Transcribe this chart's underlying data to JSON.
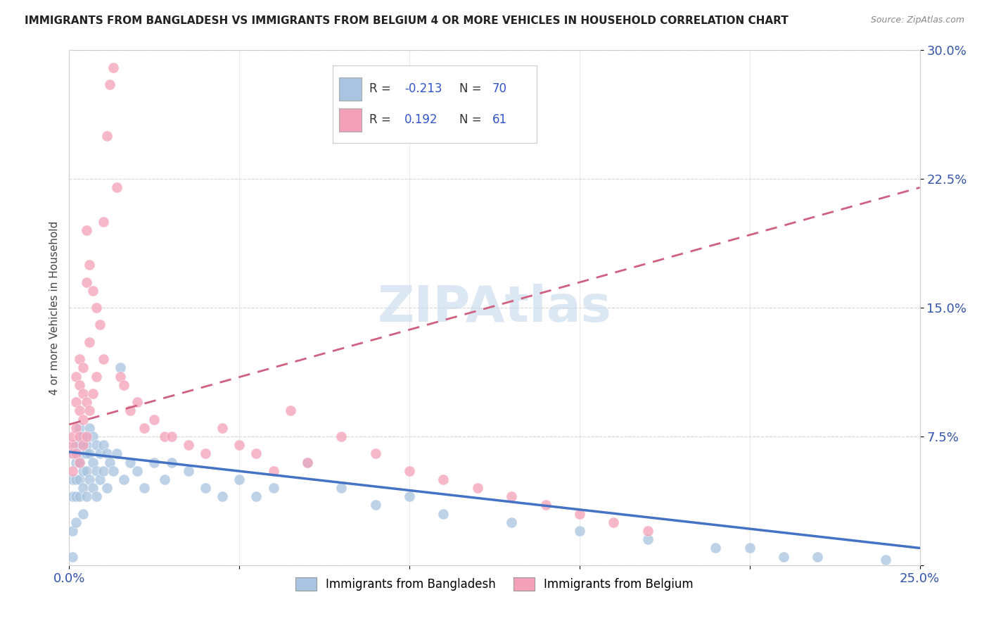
{
  "title": "IMMIGRANTS FROM BANGLADESH VS IMMIGRANTS FROM BELGIUM 4 OR MORE VEHICLES IN HOUSEHOLD CORRELATION CHART",
  "source": "Source: ZipAtlas.com",
  "ylabel": "4 or more Vehicles in Household",
  "xlim": [
    0.0,
    0.25
  ],
  "ylim": [
    0.0,
    0.3
  ],
  "color_bangladesh": "#a8c4e0",
  "color_belgium": "#f4a0b8",
  "trendline_bangladesh": "#4472c4",
  "trendline_belgium": "#d06080",
  "watermark": "ZIPAtlas",
  "legend1_R": "-0.213",
  "legend1_N": "70",
  "legend2_R": "0.192",
  "legend2_N": "61",
  "bd_x": [
    0.001,
    0.001,
    0.001,
    0.001,
    0.001,
    0.002,
    0.002,
    0.002,
    0.002,
    0.002,
    0.002,
    0.003,
    0.003,
    0.003,
    0.003,
    0.003,
    0.004,
    0.004,
    0.004,
    0.004,
    0.004,
    0.005,
    0.005,
    0.005,
    0.005,
    0.006,
    0.006,
    0.006,
    0.007,
    0.007,
    0.007,
    0.008,
    0.008,
    0.008,
    0.009,
    0.009,
    0.01,
    0.01,
    0.011,
    0.011,
    0.012,
    0.013,
    0.014,
    0.015,
    0.016,
    0.018,
    0.02,
    0.022,
    0.025,
    0.028,
    0.03,
    0.035,
    0.04,
    0.045,
    0.05,
    0.055,
    0.06,
    0.07,
    0.08,
    0.09,
    0.1,
    0.11,
    0.13,
    0.15,
    0.17,
    0.19,
    0.2,
    0.21,
    0.22,
    0.24
  ],
  "bd_y": [
    0.065,
    0.05,
    0.04,
    0.02,
    0.005,
    0.07,
    0.065,
    0.06,
    0.05,
    0.04,
    0.025,
    0.08,
    0.07,
    0.06,
    0.05,
    0.04,
    0.075,
    0.065,
    0.055,
    0.045,
    0.03,
    0.07,
    0.065,
    0.055,
    0.04,
    0.08,
    0.065,
    0.05,
    0.075,
    0.06,
    0.045,
    0.07,
    0.055,
    0.04,
    0.065,
    0.05,
    0.07,
    0.055,
    0.065,
    0.045,
    0.06,
    0.055,
    0.065,
    0.115,
    0.05,
    0.06,
    0.055,
    0.045,
    0.06,
    0.05,
    0.06,
    0.055,
    0.045,
    0.04,
    0.05,
    0.04,
    0.045,
    0.06,
    0.045,
    0.035,
    0.04,
    0.03,
    0.025,
    0.02,
    0.015,
    0.01,
    0.01,
    0.005,
    0.005,
    0.003
  ],
  "be_x": [
    0.001,
    0.001,
    0.001,
    0.001,
    0.002,
    0.002,
    0.002,
    0.002,
    0.003,
    0.003,
    0.003,
    0.003,
    0.003,
    0.004,
    0.004,
    0.004,
    0.004,
    0.005,
    0.005,
    0.005,
    0.005,
    0.006,
    0.006,
    0.006,
    0.007,
    0.007,
    0.008,
    0.008,
    0.009,
    0.01,
    0.01,
    0.011,
    0.012,
    0.013,
    0.014,
    0.015,
    0.016,
    0.018,
    0.02,
    0.022,
    0.025,
    0.028,
    0.03,
    0.035,
    0.04,
    0.045,
    0.05,
    0.055,
    0.06,
    0.065,
    0.07,
    0.08,
    0.09,
    0.1,
    0.11,
    0.12,
    0.13,
    0.14,
    0.15,
    0.16,
    0.17
  ],
  "be_y": [
    0.07,
    0.075,
    0.065,
    0.055,
    0.11,
    0.095,
    0.08,
    0.065,
    0.12,
    0.105,
    0.09,
    0.075,
    0.06,
    0.115,
    0.1,
    0.085,
    0.07,
    0.195,
    0.165,
    0.095,
    0.075,
    0.175,
    0.13,
    0.09,
    0.16,
    0.1,
    0.15,
    0.11,
    0.14,
    0.2,
    0.12,
    0.25,
    0.28,
    0.29,
    0.22,
    0.11,
    0.105,
    0.09,
    0.095,
    0.08,
    0.085,
    0.075,
    0.075,
    0.07,
    0.065,
    0.08,
    0.07,
    0.065,
    0.055,
    0.09,
    0.06,
    0.075,
    0.065,
    0.055,
    0.05,
    0.045,
    0.04,
    0.035,
    0.03,
    0.025,
    0.02
  ],
  "bd_trend_x0": 0.0,
  "bd_trend_y0": 0.066,
  "bd_trend_x1": 0.25,
  "bd_trend_y1": 0.01,
  "be_trend_x0": 0.0,
  "be_trend_y0": 0.082,
  "be_trend_x1": 0.25,
  "be_trend_y1": 0.22
}
